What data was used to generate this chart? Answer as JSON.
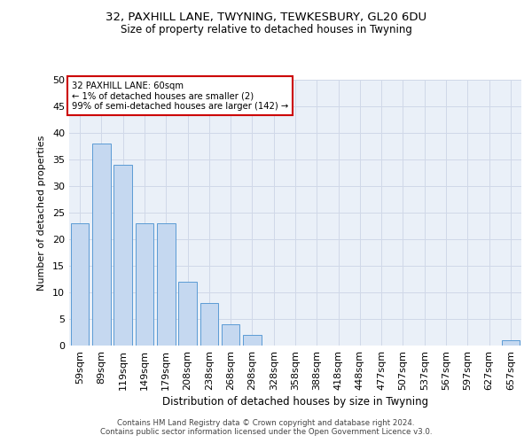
{
  "title1": "32, PAXHILL LANE, TWYNING, TEWKESBURY, GL20 6DU",
  "title2": "Size of property relative to detached houses in Twyning",
  "xlabel": "Distribution of detached houses by size in Twyning",
  "ylabel": "Number of detached properties",
  "categories": [
    "59sqm",
    "89sqm",
    "119sqm",
    "149sqm",
    "179sqm",
    "208sqm",
    "238sqm",
    "268sqm",
    "298sqm",
    "328sqm",
    "358sqm",
    "388sqm",
    "418sqm",
    "448sqm",
    "477sqm",
    "507sqm",
    "537sqm",
    "567sqm",
    "597sqm",
    "627sqm",
    "657sqm"
  ],
  "values": [
    23,
    38,
    34,
    23,
    23,
    12,
    8,
    4,
    2,
    0,
    0,
    0,
    0,
    0,
    0,
    0,
    0,
    0,
    0,
    0,
    1
  ],
  "bar_color": "#c5d8f0",
  "bar_edge_color": "#5b9bd5",
  "annotation_line1": "32 PAXHILL LANE: 60sqm",
  "annotation_line2": "← 1% of detached houses are smaller (2)",
  "annotation_line3": "99% of semi-detached houses are larger (142) →",
  "annotation_box_color": "#ffffff",
  "annotation_box_edge_color": "#cc0000",
  "ylim": [
    0,
    50
  ],
  "yticks": [
    0,
    5,
    10,
    15,
    20,
    25,
    30,
    35,
    40,
    45,
    50
  ],
  "grid_color": "#d0d8e8",
  "bg_color": "#eaf0f8",
  "footer_text": "Contains HM Land Registry data © Crown copyright and database right 2024.\nContains public sector information licensed under the Open Government Licence v3.0."
}
